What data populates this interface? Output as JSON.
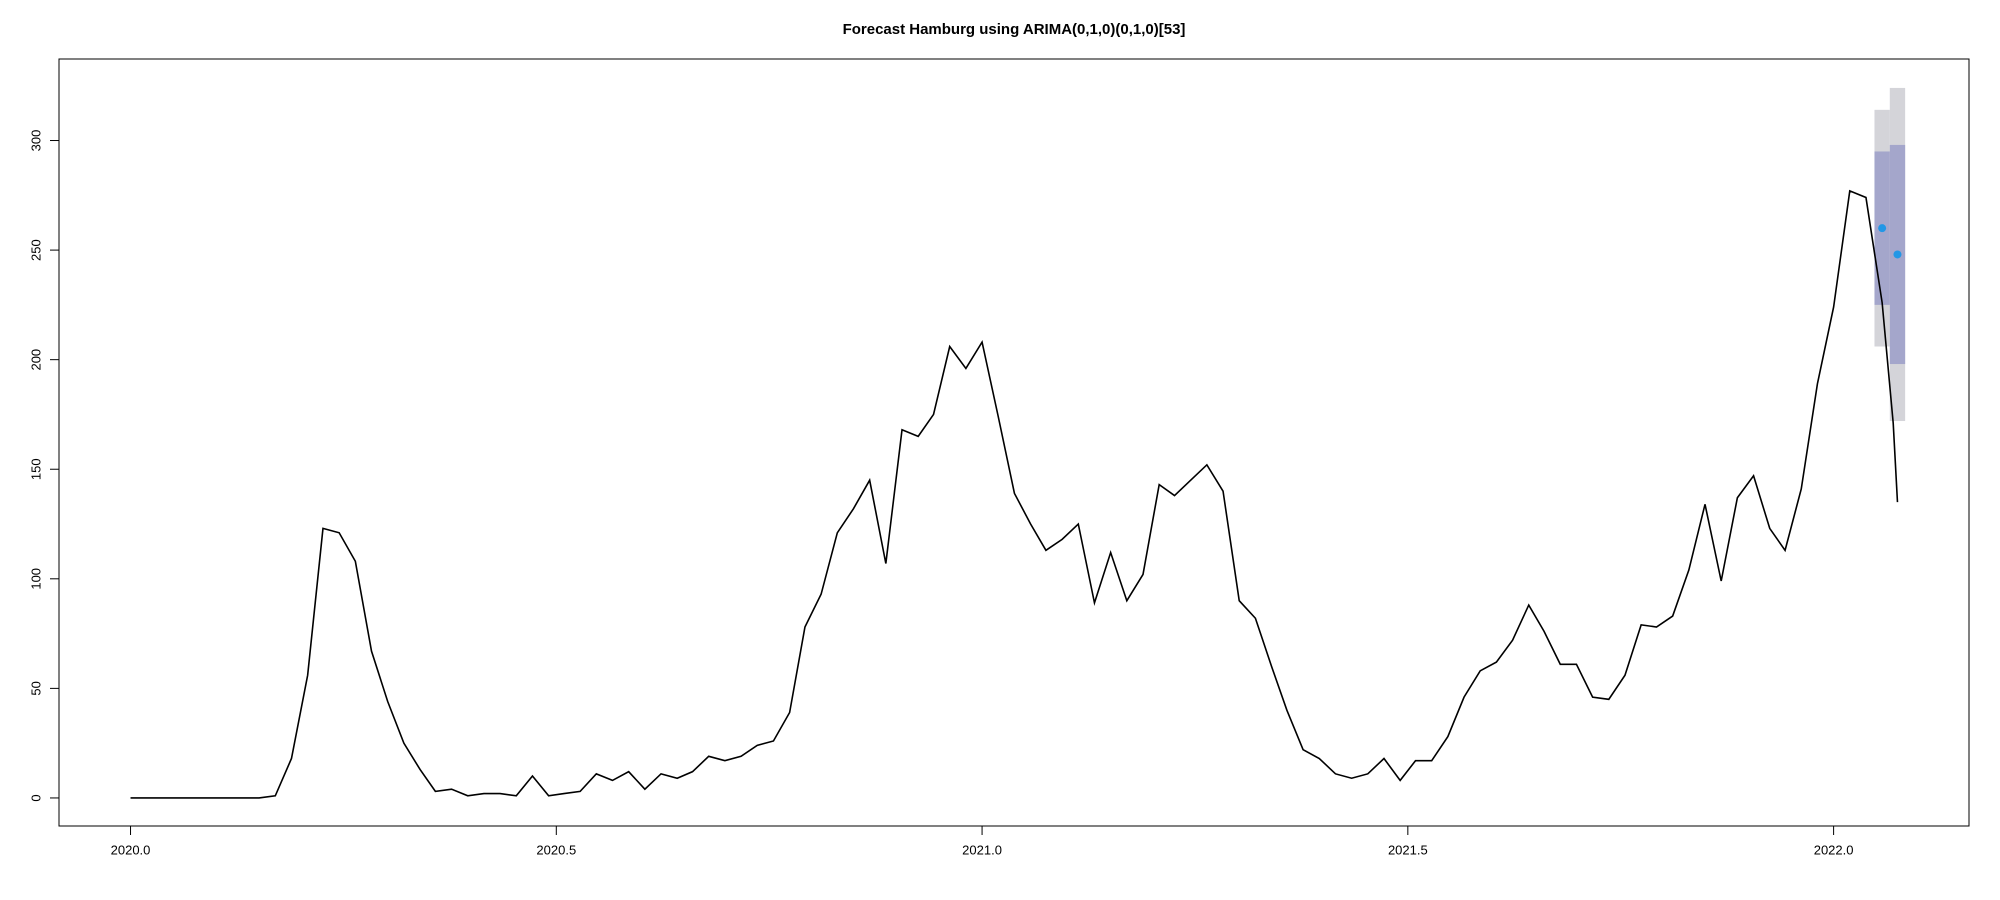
{
  "chart_data": {
    "type": "line",
    "title": "Forecast Hamburg using ARIMA(0,1,0)(0,1,0)[53]",
    "xlim": [
      2019.916,
      2022.159
    ],
    "ylim": [
      -12.8,
      337.2
    ],
    "xticks": [
      {
        "value": 2020,
        "label": "2020.0"
      },
      {
        "value": 2020.5,
        "label": "2020.5"
      },
      {
        "value": 2021,
        "label": "2021.0"
      },
      {
        "value": 2021.5,
        "label": "2021.5"
      },
      {
        "value": 2022,
        "label": "2022.0"
      }
    ],
    "yticks": [
      0,
      50,
      100,
      150,
      200,
      250,
      300
    ],
    "series": [
      {
        "color": "#000000",
        "x": [
          2020,
          2020.019,
          2020.038,
          2020.057,
          2020.075,
          2020.094,
          2020.113,
          2020.132,
          2020.151,
          2020.17,
          2020.189,
          2020.208,
          2020.226,
          2020.245,
          2020.264,
          2020.283,
          2020.302,
          2020.321,
          2020.34,
          2020.358,
          2020.377,
          2020.396,
          2020.415,
          2020.434,
          2020.453,
          2020.472,
          2020.491,
          2020.509,
          2020.528,
          2020.547,
          2020.566,
          2020.585,
          2020.604,
          2020.623,
          2020.642,
          2020.66,
          2020.679,
          2020.698,
          2020.717,
          2020.736,
          2020.755,
          2020.774,
          2020.792,
          2020.811,
          2020.83,
          2020.849,
          2020.868,
          2020.887,
          2020.906,
          2020.925,
          2020.943,
          2020.962,
          2020.981,
          2021,
          2021.019,
          2021.038,
          2021.057,
          2021.075,
          2021.094,
          2021.113,
          2021.132,
          2021.151,
          2021.17,
          2021.189,
          2021.208,
          2021.226,
          2021.245,
          2021.264,
          2021.283,
          2021.302,
          2021.321,
          2021.34,
          2021.358,
          2021.377,
          2021.396,
          2021.415,
          2021.434,
          2021.453,
          2021.472,
          2021.491,
          2021.509,
          2021.528,
          2021.547,
          2021.566,
          2021.585,
          2021.604,
          2021.623,
          2021.642,
          2021.66,
          2021.679,
          2021.698,
          2021.717,
          2021.736,
          2021.755,
          2021.774,
          2021.792,
          2021.811,
          2021.83,
          2021.849,
          2021.868,
          2021.887,
          2021.906,
          2021.925,
          2021.943,
          2021.962,
          2021.981,
          2022,
          2022.019,
          2022.038,
          2022.057,
          2022.07,
          2022.075
        ],
        "values": [
          0,
          0,
          0,
          0,
          0,
          0,
          0,
          0,
          0,
          1,
          18,
          56,
          123,
          121,
          108,
          67,
          44,
          25,
          13,
          3,
          4,
          1,
          2,
          2,
          1,
          10,
          1,
          2,
          3,
          11,
          8,
          12,
          4,
          11,
          9,
          12,
          19,
          17,
          19,
          24,
          26,
          39,
          78,
          93,
          121,
          132,
          145,
          107,
          168,
          165,
          175,
          206,
          196,
          208,
          174,
          139,
          125,
          113,
          118,
          125,
          89,
          112,
          90,
          102,
          143,
          138,
          145,
          152,
          140,
          90,
          82,
          60,
          40,
          22,
          18,
          11,
          9,
          11,
          18,
          8,
          17,
          17,
          28,
          46,
          58,
          62,
          72,
          88,
          76,
          61,
          61,
          46,
          45,
          56,
          79,
          78,
          83,
          104,
          134,
          99,
          137,
          147,
          123,
          113,
          141,
          189,
          224,
          277,
          274,
          226,
          171,
          135
        ]
      }
    ],
    "forecast": {
      "color": "#2297e6",
      "color80": "#a4a6cb",
      "color95": "#d4d4d9",
      "x": [
        2022.057,
        2022.075
      ],
      "mean": [
        260,
        248
      ],
      "lo80": [
        225,
        198
      ],
      "hi80": [
        295,
        298
      ],
      "lo95": [
        206,
        172
      ],
      "hi95": [
        314,
        324
      ]
    }
  }
}
